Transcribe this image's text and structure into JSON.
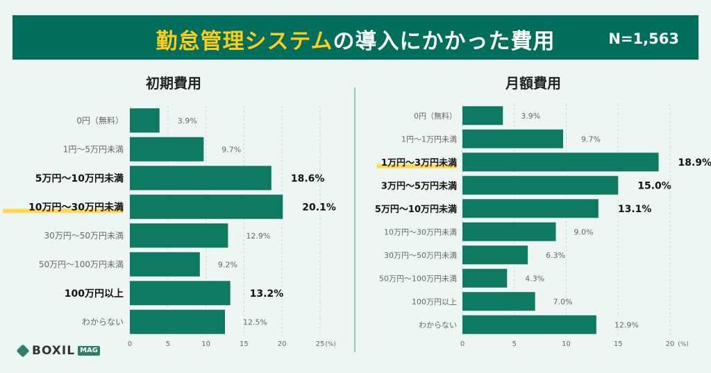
{
  "header": {
    "title_highlight": "勤怠管理システム",
    "title_rest": "の導入にかかった費用",
    "sample": "N=1,563"
  },
  "brand": {
    "name": "BOXIL",
    "tag": "MAG"
  },
  "chart_data": [
    {
      "type": "bar",
      "orientation": "horizontal",
      "title": "初期費用",
      "xlabel": "(%)",
      "xlim": [
        0,
        25
      ],
      "xticks": [
        0,
        5,
        10,
        15,
        20,
        25
      ],
      "grid": true,
      "bar_color": "#0e7a62",
      "categories": [
        "0円（無料）",
        "1円〜5万円未満",
        "5万円〜10万円未満",
        "10万円〜30万円未満",
        "30万円〜50万円未満",
        "50万円〜100万円未満",
        "100万円以上",
        "わからない"
      ],
      "values": [
        3.9,
        9.7,
        18.6,
        20.1,
        12.9,
        9.2,
        13.2,
        12.5
      ],
      "value_labels": [
        "3.9%",
        "9.7%",
        "18.6%",
        "20.1%",
        "12.9%",
        "9.2%",
        "13.2%",
        "12.5%"
      ],
      "emphasized": [
        false,
        false,
        true,
        true,
        false,
        false,
        true,
        false
      ],
      "highlighted_index": 3
    },
    {
      "type": "bar",
      "orientation": "horizontal",
      "title": "月額費用",
      "xlabel": "(%)",
      "xlim": [
        0,
        20
      ],
      "xticks": [
        0,
        5,
        10,
        15,
        20
      ],
      "grid": true,
      "bar_color": "#0e7a62",
      "categories": [
        "0円（無料）",
        "1円〜1万円未満",
        "1万円〜3万円未満",
        "3万円〜5万円未満",
        "5万円〜10万円未満",
        "10万円〜30万円未満",
        "30万円〜50万円未満",
        "50万円〜100万円未満",
        "100万円以上",
        "わからない"
      ],
      "values": [
        3.9,
        9.7,
        18.9,
        15.0,
        13.1,
        9.0,
        6.3,
        4.3,
        7.0,
        12.9
      ],
      "value_labels": [
        "3.9%",
        "9.7%",
        "18.9%",
        "15.0%",
        "13.1%",
        "9.0%",
        "6.3%",
        "4.3%",
        "7.0%",
        "12.9%"
      ],
      "emphasized": [
        false,
        false,
        true,
        true,
        true,
        false,
        false,
        false,
        false,
        false
      ],
      "highlighted_index": 2
    }
  ]
}
